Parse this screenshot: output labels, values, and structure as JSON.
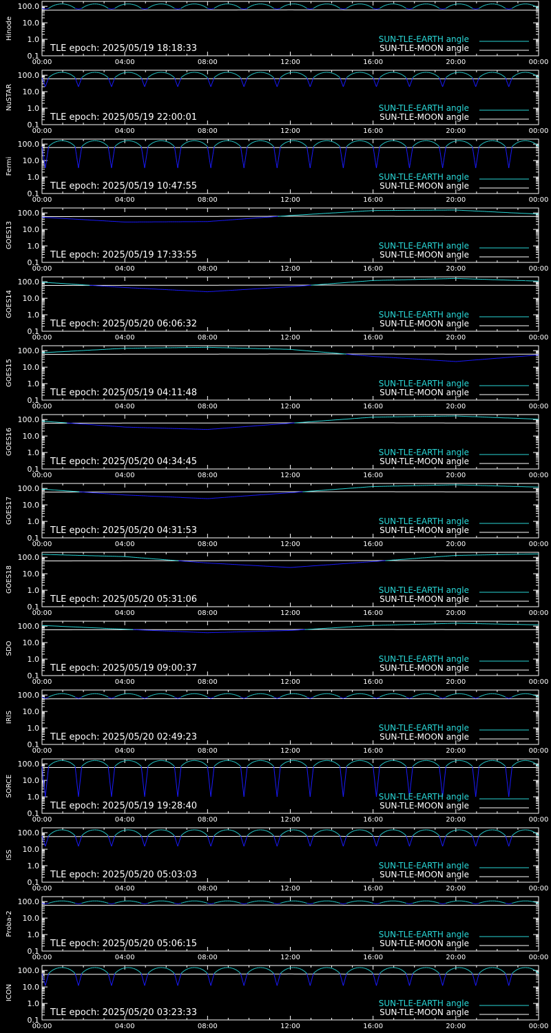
{
  "colors": {
    "background": "#000000",
    "axes": "#ffffff",
    "earth_series": "#2ad8d8",
    "earth_series_dip": "#1a1aff",
    "moon_series": "#ffffff"
  },
  "legend": {
    "earth_label": "SUN-TLE-EARTH angle",
    "moon_label": "SUN-TLE-MOON angle"
  },
  "axis": {
    "y_tick_labels": [
      "100.0",
      "10.0",
      "1.0",
      "0.1"
    ],
    "x_tick_labels": [
      "00:00",
      "04:00",
      "08:00",
      "12:00",
      "16:00",
      "20:00",
      "00:00"
    ]
  },
  "chart_data": [
    {
      "type": "line",
      "ylabel": "Hinode",
      "epoch_text": "TLE epoch: 2025/05/19 18:18:33",
      "x": [
        "00:00",
        "04:00",
        "08:00",
        "12:00",
        "16:00",
        "20:00",
        "00:00"
      ],
      "ylim": [
        0.1,
        200
      ],
      "y_scale": "log",
      "series": [
        {
          "name": "SUN-TLE-EARTH angle",
          "model": "orbit",
          "period_h": 1.6,
          "base": 75,
          "peak": 140,
          "min": 68
        },
        {
          "name": "SUN-TLE-MOON angle",
          "model": "flat",
          "values": [
            58,
            59,
            60,
            61,
            60,
            59,
            58
          ]
        }
      ]
    },
    {
      "type": "line",
      "ylabel": "NuSTAR",
      "epoch_text": "TLE epoch: 2025/05/19 22:00:01",
      "x": [
        "00:00",
        "04:00",
        "08:00",
        "12:00",
        "16:00",
        "20:00",
        "00:00"
      ],
      "ylim": [
        0.1,
        200
      ],
      "y_scale": "log",
      "series": [
        {
          "name": "SUN-TLE-EARTH angle",
          "model": "orbit",
          "period_h": 1.6,
          "base": 70,
          "peak": 150,
          "min": 20
        },
        {
          "name": "SUN-TLE-MOON angle",
          "model": "flat",
          "values": [
            60,
            60,
            61,
            61,
            60,
            60,
            60
          ]
        }
      ]
    },
    {
      "type": "line",
      "ylabel": "Fermi",
      "epoch_text": "TLE epoch: 2025/05/19 10:47:55",
      "x": [
        "00:00",
        "04:00",
        "08:00",
        "12:00",
        "16:00",
        "20:00",
        "00:00"
      ],
      "ylim": [
        0.1,
        200
      ],
      "y_scale": "log",
      "series": [
        {
          "name": "SUN-TLE-EARTH angle",
          "model": "orbit",
          "period_h": 1.6,
          "base": 70,
          "peak": 160,
          "min": 3.5
        },
        {
          "name": "SUN-TLE-MOON angle",
          "model": "flat",
          "values": [
            62,
            62,
            62,
            62,
            62,
            62,
            62
          ]
        }
      ]
    },
    {
      "type": "line",
      "ylabel": "GOES13",
      "epoch_text": "TLE epoch: 2025/05/19 17:33:55",
      "x": [
        "00:00",
        "04:00",
        "08:00",
        "12:00",
        "16:00",
        "20:00",
        "00:00"
      ],
      "ylim": [
        0.1,
        200
      ],
      "y_scale": "log",
      "series": [
        {
          "name": "SUN-TLE-EARTH angle",
          "model": "geo",
          "values": [
            55,
            28,
            30,
            70,
            140,
            150,
            85
          ]
        },
        {
          "name": "SUN-TLE-MOON angle",
          "model": "flat",
          "values": [
            60,
            61,
            62,
            63,
            63,
            62,
            61
          ]
        }
      ]
    },
    {
      "type": "line",
      "ylabel": "GOES14",
      "epoch_text": "TLE epoch: 2025/05/20 06:06:32",
      "x": [
        "00:00",
        "04:00",
        "08:00",
        "12:00",
        "16:00",
        "20:00",
        "00:00"
      ],
      "ylim": [
        0.1,
        200
      ],
      "y_scale": "log",
      "series": [
        {
          "name": "SUN-TLE-EARTH angle",
          "model": "geo",
          "values": [
            95,
            45,
            25,
            50,
            120,
            160,
            110
          ]
        },
        {
          "name": "SUN-TLE-MOON angle",
          "model": "flat",
          "values": [
            60,
            61,
            62,
            63,
            63,
            62,
            61
          ]
        }
      ]
    },
    {
      "type": "line",
      "ylabel": "GOES15",
      "epoch_text": "TLE epoch: 2025/05/19 04:11:48",
      "x": [
        "00:00",
        "04:00",
        "08:00",
        "12:00",
        "16:00",
        "20:00",
        "00:00"
      ],
      "ylim": [
        0.1,
        200
      ],
      "y_scale": "log",
      "series": [
        {
          "name": "SUN-TLE-EARTH angle",
          "model": "geo",
          "values": [
            75,
            140,
            160,
            120,
            45,
            22,
            55
          ]
        },
        {
          "name": "SUN-TLE-MOON angle",
          "model": "flat",
          "values": [
            60,
            61,
            62,
            63,
            63,
            62,
            61
          ]
        }
      ]
    },
    {
      "type": "line",
      "ylabel": "GOES16",
      "epoch_text": "TLE epoch: 2025/05/20 04:34:45",
      "x": [
        "00:00",
        "04:00",
        "08:00",
        "12:00",
        "16:00",
        "20:00",
        "00:00"
      ],
      "ylim": [
        0.1,
        200
      ],
      "y_scale": "log",
      "series": [
        {
          "name": "SUN-TLE-EARTH angle",
          "model": "geo",
          "values": [
            80,
            35,
            25,
            60,
            140,
            165,
            105
          ]
        },
        {
          "name": "SUN-TLE-MOON angle",
          "model": "flat",
          "values": [
            60,
            61,
            62,
            63,
            63,
            62,
            61
          ]
        }
      ]
    },
    {
      "type": "line",
      "ylabel": "GOES17",
      "epoch_text": "TLE epoch: 2025/05/20 04:31:53",
      "x": [
        "00:00",
        "04:00",
        "08:00",
        "12:00",
        "16:00",
        "20:00",
        "00:00"
      ],
      "ylim": [
        0.1,
        200
      ],
      "y_scale": "log",
      "series": [
        {
          "name": "SUN-TLE-EARTH angle",
          "model": "geo",
          "values": [
            90,
            40,
            24,
            55,
            130,
            165,
            120
          ]
        },
        {
          "name": "SUN-TLE-MOON angle",
          "model": "flat",
          "values": [
            60,
            61,
            62,
            63,
            63,
            62,
            61
          ]
        }
      ]
    },
    {
      "type": "line",
      "ylabel": "GOES18",
      "epoch_text": "TLE epoch: 2025/05/20 05:31:06",
      "x": [
        "00:00",
        "04:00",
        "08:00",
        "12:00",
        "16:00",
        "20:00",
        "00:00"
      ],
      "ylim": [
        0.1,
        200
      ],
      "y_scale": "log",
      "series": [
        {
          "name": "SUN-TLE-EARTH angle",
          "model": "geo",
          "values": [
            150,
            110,
            45,
            24,
            55,
            130,
            160
          ]
        },
        {
          "name": "SUN-TLE-MOON angle",
          "model": "flat",
          "values": [
            60,
            61,
            62,
            63,
            63,
            62,
            61
          ]
        }
      ]
    },
    {
      "type": "line",
      "ylabel": "SDO",
      "epoch_text": "TLE epoch: 2025/05/19 09:00:37",
      "x": [
        "00:00",
        "04:00",
        "08:00",
        "12:00",
        "16:00",
        "20:00",
        "00:00"
      ],
      "ylim": [
        0.1,
        200
      ],
      "y_scale": "log",
      "series": [
        {
          "name": "SUN-TLE-EARTH angle",
          "model": "geo",
          "values": [
            110,
            65,
            40,
            55,
            110,
            150,
            120
          ]
        },
        {
          "name": "SUN-TLE-MOON angle",
          "model": "flat",
          "values": [
            60,
            61,
            62,
            63,
            63,
            62,
            61
          ]
        }
      ]
    },
    {
      "type": "line",
      "ylabel": "IRIS",
      "epoch_text": "TLE epoch: 2025/05/20 02:49:23",
      "x": [
        "00:00",
        "04:00",
        "08:00",
        "12:00",
        "16:00",
        "20:00",
        "00:00"
      ],
      "ylim": [
        0.1,
        200
      ],
      "y_scale": "log",
      "series": [
        {
          "name": "SUN-TLE-EARTH angle",
          "model": "orbit",
          "period_h": 1.6,
          "base": 75,
          "peak": 120,
          "min": 62
        },
        {
          "name": "SUN-TLE-MOON angle",
          "model": "flat",
          "values": [
            58,
            59,
            60,
            61,
            60,
            59,
            58
          ]
        }
      ]
    },
    {
      "type": "line",
      "ylabel": "SORCE",
      "epoch_text": "TLE epoch: 2025/05/19 19:28:40",
      "x": [
        "00:00",
        "04:00",
        "08:00",
        "12:00",
        "16:00",
        "20:00",
        "00:00"
      ],
      "ylim": [
        0.1,
        200
      ],
      "y_scale": "log",
      "series": [
        {
          "name": "SUN-TLE-EARTH angle",
          "model": "orbit",
          "period_h": 1.6,
          "base": 70,
          "peak": 160,
          "min": 1.0
        },
        {
          "name": "SUN-TLE-MOON angle",
          "model": "flat",
          "values": [
            60,
            60,
            60,
            60,
            60,
            60,
            60
          ]
        }
      ]
    },
    {
      "type": "line",
      "ylabel": "ISS",
      "epoch_text": "TLE epoch: 2025/05/20 05:03:03",
      "x": [
        "00:00",
        "04:00",
        "08:00",
        "12:00",
        "16:00",
        "20:00",
        "00:00"
      ],
      "ylim": [
        0.1,
        200
      ],
      "y_scale": "log",
      "series": [
        {
          "name": "SUN-TLE-EARTH angle",
          "model": "orbit",
          "period_h": 1.6,
          "base": 65,
          "peak": 150,
          "min": 15
        },
        {
          "name": "SUN-TLE-MOON angle",
          "model": "flat",
          "values": [
            58,
            59,
            60,
            61,
            60,
            59,
            58
          ]
        }
      ]
    },
    {
      "type": "line",
      "ylabel": "Proba-2",
      "epoch_text": "TLE epoch: 2025/05/20 05:06:15",
      "x": [
        "00:00",
        "04:00",
        "08:00",
        "12:00",
        "16:00",
        "20:00",
        "00:00"
      ],
      "ylim": [
        0.1,
        200
      ],
      "y_scale": "log",
      "series": [
        {
          "name": "SUN-TLE-EARTH angle",
          "model": "orbit",
          "period_h": 1.6,
          "base": 80,
          "peak": 110,
          "min": 72
        },
        {
          "name": "SUN-TLE-MOON angle",
          "model": "flat",
          "values": [
            60,
            60,
            61,
            61,
            60,
            60,
            60
          ]
        }
      ]
    },
    {
      "type": "line",
      "ylabel": "ICON",
      "epoch_text": "TLE epoch: 2025/05/20 03:23:33",
      "x": [
        "00:00",
        "04:00",
        "08:00",
        "12:00",
        "16:00",
        "20:00",
        "00:00"
      ],
      "ylim": [
        0.1,
        200
      ],
      "y_scale": "log",
      "series": [
        {
          "name": "SUN-TLE-EARTH angle",
          "model": "orbit",
          "period_h": 1.6,
          "base": 65,
          "peak": 150,
          "min": 12
        },
        {
          "name": "SUN-TLE-MOON angle",
          "model": "flat",
          "values": [
            58,
            59,
            60,
            61,
            60,
            59,
            58
          ]
        }
      ]
    }
  ]
}
